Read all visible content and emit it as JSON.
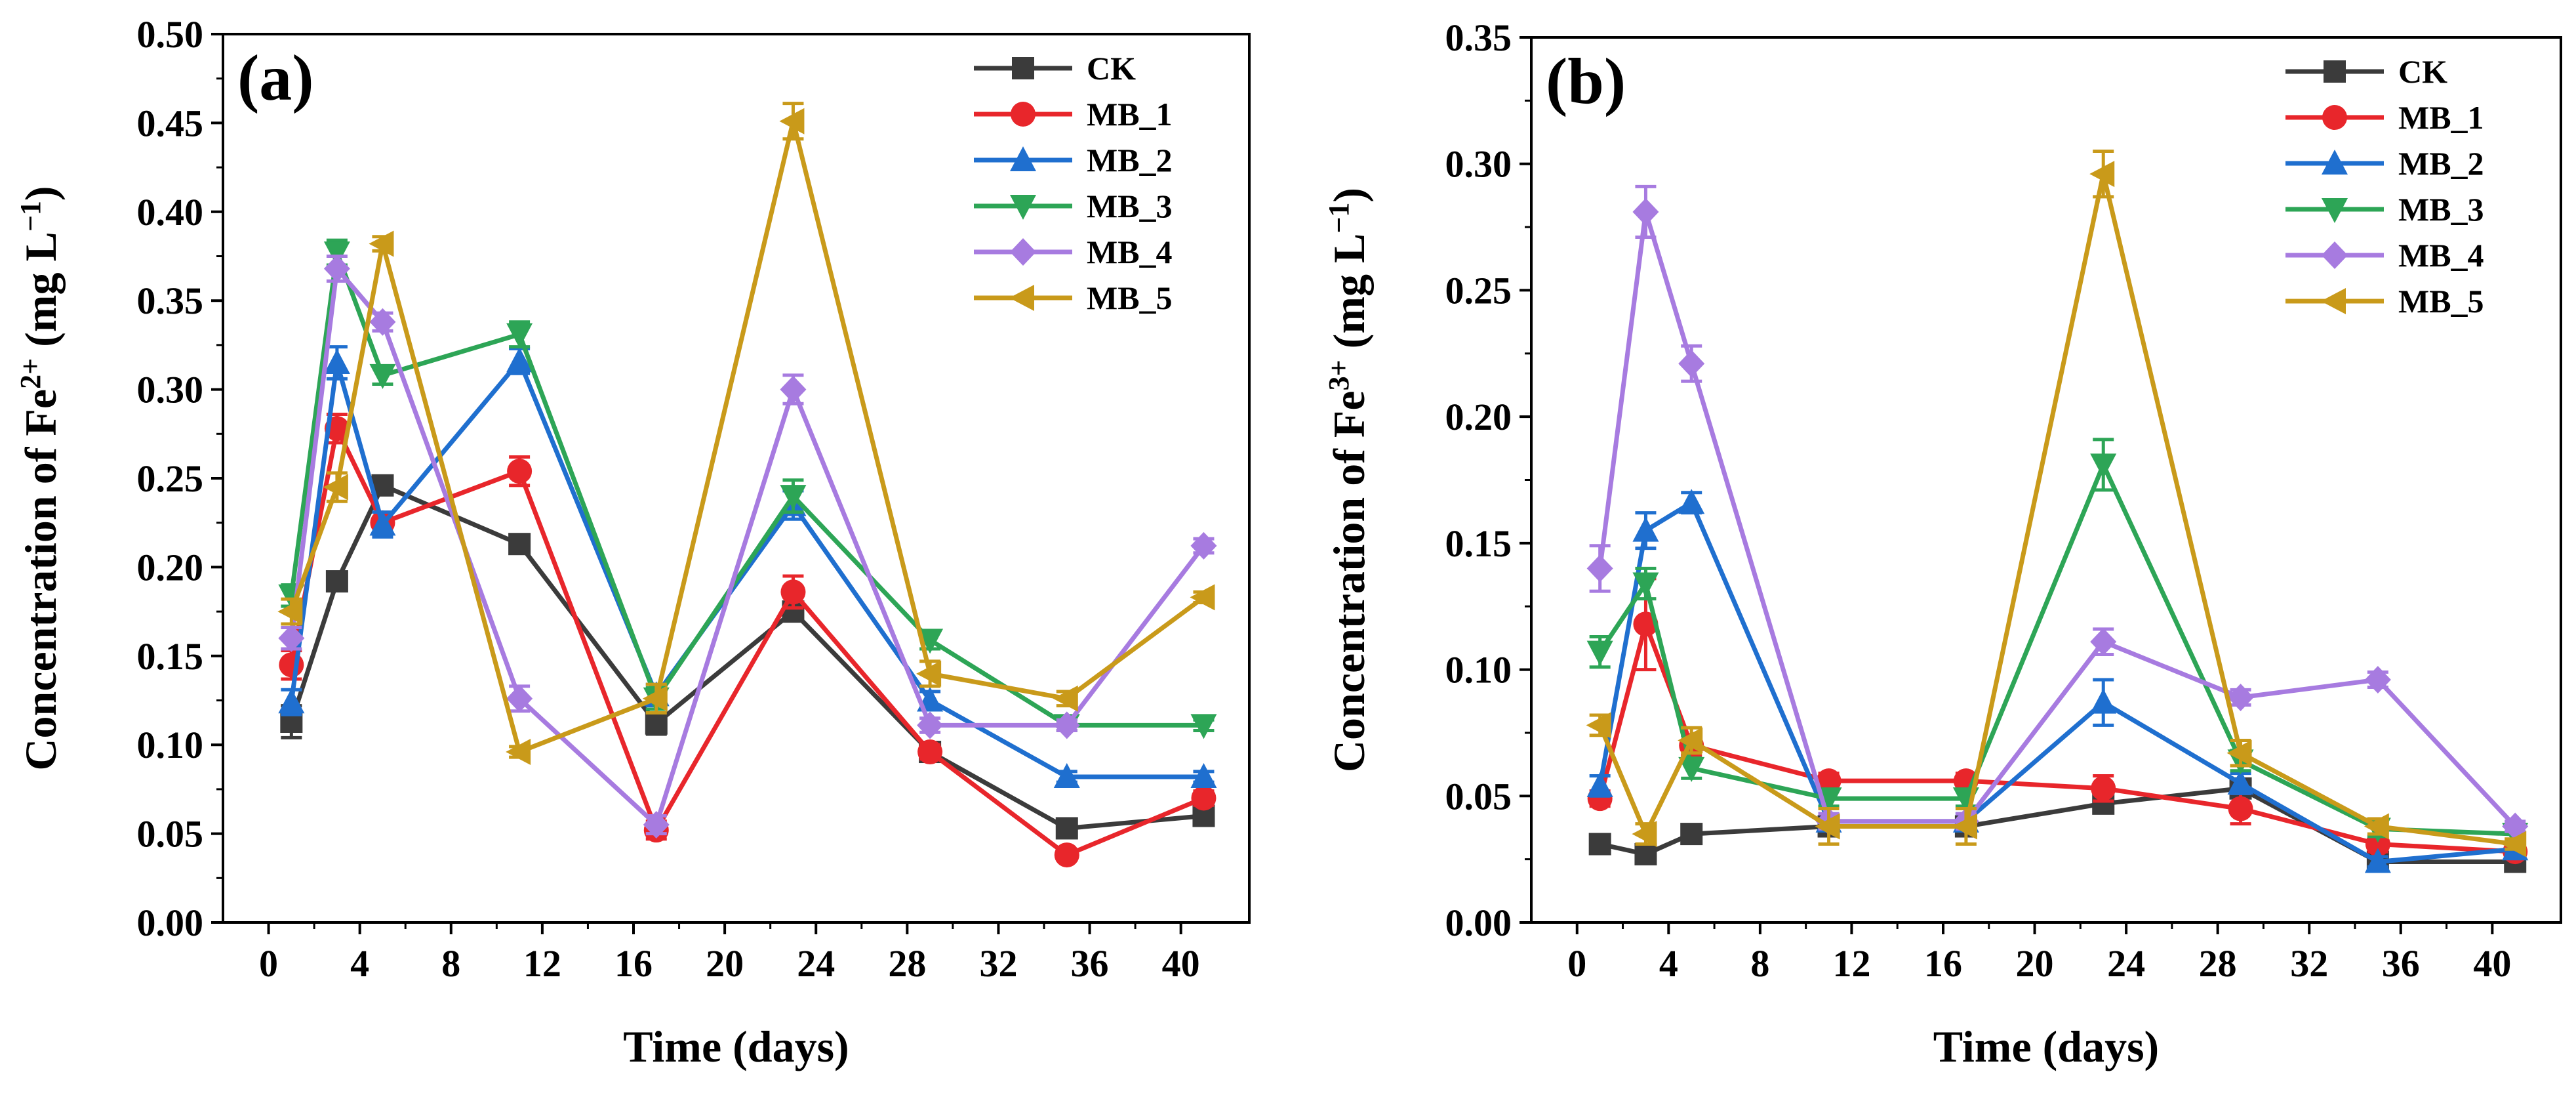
{
  "chart_data": [
    {
      "type": "line",
      "panel_label": "(a)",
      "xlabel": "Time (days)",
      "ylabel": {
        "prefix": "Concentration of Fe",
        "superscript": "2+",
        "unit_open": " (mg L",
        "unit_exp": "−1",
        "unit_close": ")"
      },
      "xlim": [
        -2,
        43
      ],
      "ylim": [
        0,
        0.5
      ],
      "xticks": [
        0,
        4,
        8,
        12,
        16,
        20,
        24,
        28,
        32,
        36,
        40
      ],
      "yticks": [
        0.0,
        0.05,
        0.1,
        0.15,
        0.2,
        0.25,
        0.3,
        0.35,
        0.4,
        0.45,
        0.5
      ],
      "legend_position": "top-right",
      "x": [
        1,
        3,
        5,
        11,
        17,
        23,
        29,
        35,
        41
      ],
      "series": [
        {
          "name": "CK",
          "color": "#3b3b3b",
          "marker": "square",
          "values": [
            0.113,
            0.192,
            0.246,
            0.213,
            0.112,
            0.175,
            0.096,
            0.053,
            0.06
          ],
          "errors": [
            0.009,
            0.005,
            0.005,
            0.004,
            0.006,
            0.005,
            0.004,
            0.004,
            0.004
          ]
        },
        {
          "name": "MB_1",
          "color": "#e8262b",
          "marker": "circle",
          "values": [
            0.145,
            0.278,
            0.225,
            0.254,
            0.052,
            0.186,
            0.096,
            0.038,
            0.07
          ],
          "errors": [
            0.008,
            0.008,
            0.006,
            0.008,
            0.005,
            0.009,
            0.004,
            0.003,
            0.004
          ]
        },
        {
          "name": "MB_2",
          "color": "#1f6fcf",
          "marker": "triangle-up",
          "values": [
            0.124,
            0.315,
            0.224,
            0.316,
            0.128,
            0.235,
            0.125,
            0.082,
            0.082
          ],
          "errors": [
            0.007,
            0.009,
            0.007,
            0.007,
            0.006,
            0.008,
            0.005,
            0.003,
            0.003
          ]
        },
        {
          "name": "MB_3",
          "color": "#2da556",
          "marker": "triangle-down",
          "values": [
            0.184,
            0.377,
            0.308,
            0.331,
            0.126,
            0.24,
            0.159,
            0.111,
            0.111
          ],
          "errors": [
            0.006,
            0.007,
            0.005,
            0.007,
            0.006,
            0.009,
            0.005,
            0.003,
            0.003
          ]
        },
        {
          "name": "MB_4",
          "color": "#a77be0",
          "marker": "diamond",
          "values": [
            0.16,
            0.368,
            0.338,
            0.126,
            0.055,
            0.3,
            0.111,
            0.111,
            0.212
          ],
          "errors": [
            0.006,
            0.007,
            0.005,
            0.007,
            0.005,
            0.008,
            0.004,
            0.003,
            0.004
          ]
        },
        {
          "name": "MB_5",
          "color": "#c99a1a",
          "marker": "triangle-left",
          "values": [
            0.175,
            0.245,
            0.382,
            0.096,
            0.126,
            0.451,
            0.14,
            0.126,
            0.183
          ],
          "errors": [
            0.007,
            0.008,
            0.004,
            0.003,
            0.008,
            0.01,
            0.007,
            0.004,
            0.003
          ]
        }
      ]
    },
    {
      "type": "line",
      "panel_label": "(b)",
      "xlabel": "Time (days)",
      "ylabel": {
        "prefix": "Concentration of Fe",
        "superscript": "3+",
        "unit_open": " (mg L",
        "unit_exp": "−1",
        "unit_close": ")"
      },
      "xlim": [
        -2,
        43
      ],
      "ylim": [
        0,
        0.35
      ],
      "xticks": [
        0,
        4,
        8,
        12,
        16,
        20,
        24,
        28,
        32,
        36,
        40
      ],
      "yticks": [
        0.0,
        0.05,
        0.1,
        0.15,
        0.2,
        0.25,
        0.3,
        0.35
      ],
      "legend_position": "top-right",
      "x": [
        1,
        3,
        5,
        11,
        17,
        23,
        29,
        35,
        41
      ],
      "series": [
        {
          "name": "CK",
          "color": "#3b3b3b",
          "marker": "square",
          "values": [
            0.031,
            0.027,
            0.035,
            0.038,
            0.038,
            0.047,
            0.053,
            0.024,
            0.024
          ],
          "errors": [
            0.003,
            0.003,
            0.003,
            0.002,
            0.003,
            0.003,
            0.003,
            0.002,
            0.002
          ]
        },
        {
          "name": "MB_1",
          "color": "#e8262b",
          "marker": "circle",
          "values": [
            0.049,
            0.118,
            0.07,
            0.056,
            0.056,
            0.053,
            0.045,
            0.031,
            0.028
          ],
          "errors": [
            0.003,
            0.018,
            0.004,
            0.003,
            0.003,
            0.005,
            0.006,
            0.003,
            0.002
          ]
        },
        {
          "name": "MB_2",
          "color": "#1f6fcf",
          "marker": "triangle-up",
          "values": [
            0.054,
            0.155,
            0.166,
            0.04,
            0.04,
            0.087,
            0.055,
            0.024,
            0.029
          ],
          "errors": [
            0.004,
            0.007,
            0.004,
            0.003,
            0.003,
            0.009,
            0.004,
            0.002,
            0.002
          ]
        },
        {
          "name": "MB_3",
          "color": "#2da556",
          "marker": "triangle-down",
          "values": [
            0.107,
            0.134,
            0.061,
            0.049,
            0.049,
            0.181,
            0.064,
            0.037,
            0.035
          ],
          "errors": [
            0.006,
            0.006,
            0.004,
            0.003,
            0.003,
            0.01,
            0.004,
            0.003,
            0.003
          ]
        },
        {
          "name": "MB_4",
          "color": "#a77be0",
          "marker": "diamond",
          "values": [
            0.14,
            0.281,
            0.221,
            0.04,
            0.04,
            0.111,
            0.089,
            0.096,
            0.038
          ],
          "errors": [
            0.009,
            0.01,
            0.007,
            0.003,
            0.003,
            0.005,
            0.003,
            0.003,
            0.002
          ]
        },
        {
          "name": "MB_5",
          "color": "#c99a1a",
          "marker": "triangle-left",
          "values": [
            0.078,
            0.035,
            0.072,
            0.038,
            0.038,
            0.296,
            0.067,
            0.038,
            0.031
          ],
          "errors": [
            0.004,
            0.004,
            0.005,
            0.007,
            0.007,
            0.009,
            0.005,
            0.003,
            0.002
          ]
        }
      ]
    }
  ]
}
